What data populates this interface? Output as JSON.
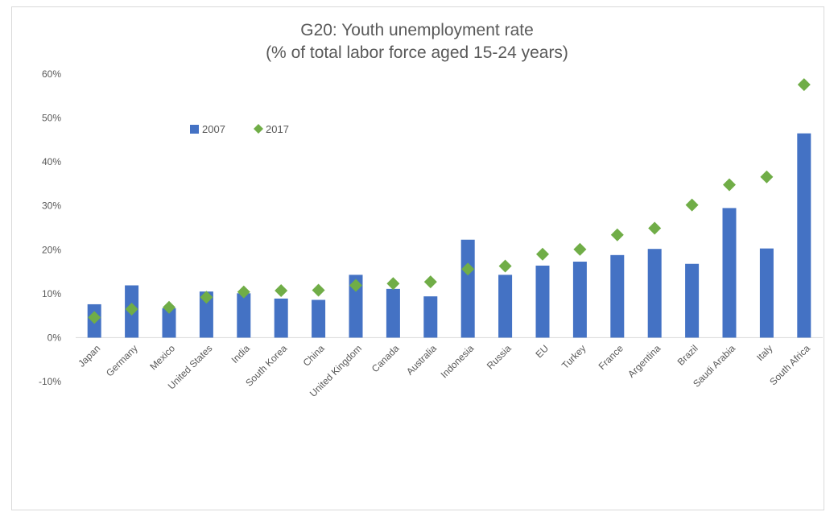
{
  "chart_data": {
    "type": "bar",
    "title": "G20: Youth unemployment rate",
    "subtitle": "(% of total labor force aged 15-24 years)",
    "categories": [
      "Japan",
      "Germany",
      "Mexico",
      "United States",
      "India",
      "South Korea",
      "China",
      "United Kingdom",
      "Canada",
      "Australia",
      "Indonesia",
      "Russia",
      "EU",
      "Turkey",
      "France",
      "Argentina",
      "Brazil",
      "Saudi Arabia",
      "Italy",
      "South Africa"
    ],
    "series": [
      {
        "name": "2007",
        "mark": "bar",
        "color": "#4472c4",
        "values": [
          7.6,
          11.9,
          6.7,
          10.5,
          10.1,
          8.9,
          8.6,
          14.3,
          11.1,
          9.4,
          22.3,
          14.3,
          16.4,
          17.3,
          18.8,
          20.2,
          16.8,
          29.5,
          20.3,
          46.5
        ]
      },
      {
        "name": "2017",
        "mark": "diamond",
        "color": "#70ad47",
        "values": [
          4.6,
          6.5,
          6.9,
          9.2,
          10.4,
          10.7,
          10.8,
          11.9,
          12.3,
          12.7,
          15.6,
          16.3,
          19.0,
          20.1,
          23.4,
          24.9,
          30.2,
          34.8,
          36.6,
          57.6
        ]
      }
    ],
    "yticks": [
      "-10%",
      "0%",
      "10%",
      "20%",
      "30%",
      "40%",
      "50%",
      "60%"
    ],
    "ylim": [
      -10,
      60
    ],
    "xlabel": "",
    "ylabel": "",
    "grid": false,
    "legend": "top-left"
  }
}
